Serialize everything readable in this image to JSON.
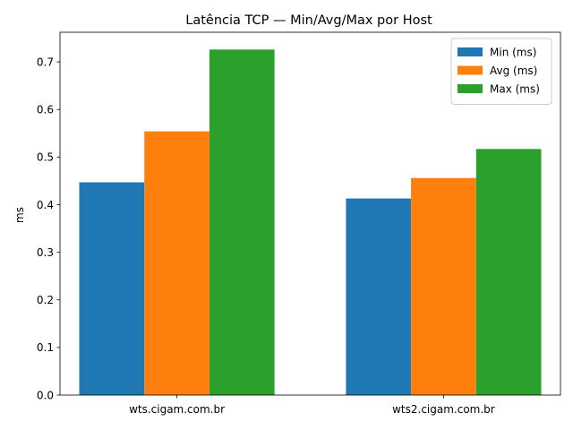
{
  "chart_data": {
    "type": "bar",
    "title": "Latência TCP — Min/Avg/Max por Host",
    "xlabel": "",
    "ylabel": "ms",
    "categories": [
      "wts.cigam.com.br",
      "wts2.cigam.com.br"
    ],
    "series": [
      {
        "name": "Min (ms)",
        "values": [
          0.447,
          0.413
        ],
        "color": "#1f77b4"
      },
      {
        "name": "Avg (ms)",
        "values": [
          0.554,
          0.456
        ],
        "color": "#ff7f0e"
      },
      {
        "name": "Max (ms)",
        "values": [
          0.726,
          0.517
        ],
        "color": "#2ca02c"
      }
    ],
    "ylim": [
      0,
      0.7623
    ],
    "yticks": [
      "0.0",
      "0.1",
      "0.2",
      "0.3",
      "0.4",
      "0.5",
      "0.6",
      "0.7"
    ],
    "ytick_values": [
      0,
      0.1,
      0.2,
      0.3,
      0.4,
      0.5,
      0.6,
      0.7
    ],
    "grid": false,
    "legend_position": "top-right"
  }
}
